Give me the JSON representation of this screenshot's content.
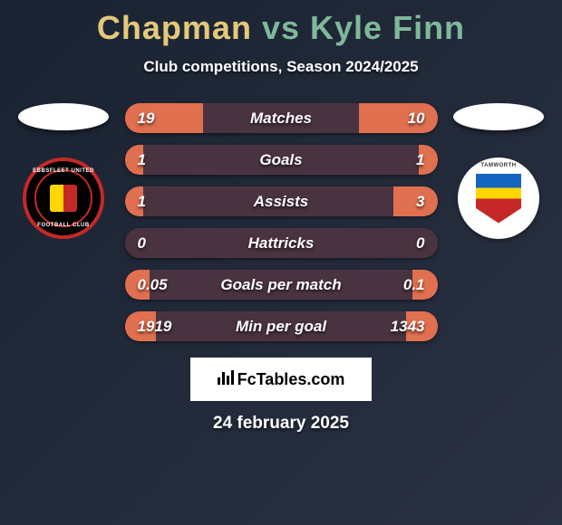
{
  "title": {
    "player1": "Chapman",
    "vs": "vs",
    "player2": "Kyle Finn",
    "player1_color": "#e5c87a",
    "vs_color": "#7fb89a",
    "player2_color": "#7fb89a"
  },
  "subtitle": "Club competitions, Season 2024/2025",
  "badges": {
    "left": {
      "top_text": "EBBSFLEET UNITED",
      "bottom_text": "FOOTBALL CLUB"
    },
    "right": {
      "top_text": "TAMWORTH"
    }
  },
  "stats": {
    "rows": [
      {
        "label": "Matches",
        "left": "19",
        "right": "10",
        "left_pct": 25,
        "right_pct": 25
      },
      {
        "label": "Goals",
        "left": "1",
        "right": "1",
        "left_pct": 6,
        "right_pct": 6
      },
      {
        "label": "Assists",
        "left": "1",
        "right": "3",
        "left_pct": 6,
        "right_pct": 14
      },
      {
        "label": "Hattricks",
        "left": "0",
        "right": "0",
        "left_pct": 0,
        "right_pct": 0
      },
      {
        "label": "Goals per match",
        "left": "0.05",
        "right": "0.1",
        "left_pct": 8,
        "right_pct": 8
      },
      {
        "label": "Min per goal",
        "left": "1919",
        "right": "1343",
        "left_pct": 10,
        "right_pct": 10
      }
    ],
    "bar_bg_color": "#4a3340",
    "fill_color": "#e07050",
    "text_color": "#ffffff"
  },
  "footer": {
    "brand": "FcTables.com",
    "date": "24 february 2025"
  },
  "colors": {
    "page_bg_start": "#1a2332",
    "page_bg_end": "#2a3142"
  }
}
